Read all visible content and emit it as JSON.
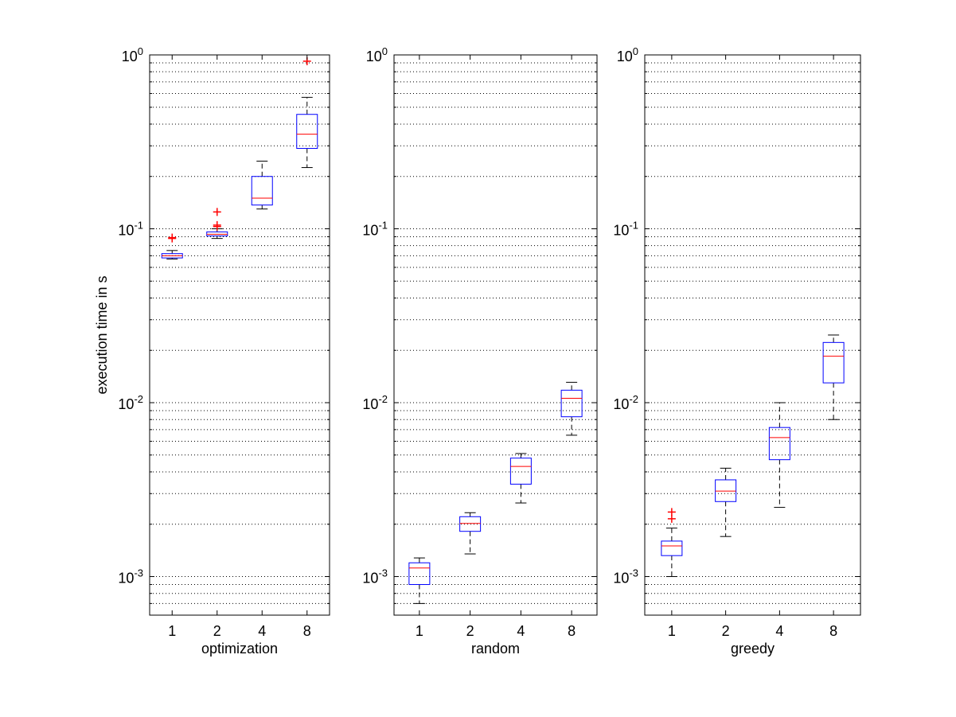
{
  "figure": {
    "ylabel": "execution time in s"
  },
  "chart_data": [
    {
      "type": "box",
      "xlabel": "optimization",
      "ylabel": "execution time in s",
      "yscale": "log",
      "ylim": [
        0.0006,
        1.0
      ],
      "grid": "y-minor-dotted",
      "categories": [
        "1",
        "2",
        "4",
        "8"
      ],
      "yticks": [
        {
          "base": "10",
          "exp": "-3"
        },
        {
          "base": "10",
          "exp": "-2"
        },
        {
          "base": "10",
          "exp": "-1"
        },
        {
          "base": "10",
          "exp": "0"
        }
      ],
      "boxes": [
        {
          "label": "1",
          "whisker_low": 0.067,
          "q1": 0.068,
          "median": 0.07,
          "q3": 0.072,
          "whisker_high": 0.075,
          "outliers": [
            0.088,
            0.089
          ]
        },
        {
          "label": "2",
          "whisker_low": 0.088,
          "q1": 0.091,
          "median": 0.093,
          "q3": 0.096,
          "whisker_high": 0.1,
          "outliers": [
            0.103,
            0.105,
            0.125
          ]
        },
        {
          "label": "4",
          "whisker_low": 0.13,
          "q1": 0.137,
          "median": 0.15,
          "q3": 0.2,
          "whisker_high": 0.245,
          "outliers": []
        },
        {
          "label": "8",
          "whisker_low": 0.225,
          "q1": 0.29,
          "median": 0.35,
          "q3": 0.455,
          "whisker_high": 0.57,
          "outliers": [
            0.92
          ]
        }
      ]
    },
    {
      "type": "box",
      "xlabel": "random",
      "ylabel": "",
      "yscale": "log",
      "ylim": [
        0.0006,
        1.0
      ],
      "grid": "y-minor-dotted",
      "categories": [
        "1",
        "2",
        "4",
        "8"
      ],
      "yticks": [
        {
          "base": "10",
          "exp": "-3"
        },
        {
          "base": "10",
          "exp": "-2"
        },
        {
          "base": "10",
          "exp": "-1"
        },
        {
          "base": "10",
          "exp": "0"
        }
      ],
      "boxes": [
        {
          "label": "1",
          "whisker_low": 0.0007,
          "q1": 0.0009,
          "median": 0.00112,
          "q3": 0.0012,
          "whisker_high": 0.00128,
          "outliers": []
        },
        {
          "label": "2",
          "whisker_low": 0.00135,
          "q1": 0.00182,
          "median": 0.00202,
          "q3": 0.00221,
          "whisker_high": 0.00233,
          "outliers": []
        },
        {
          "label": "4",
          "whisker_low": 0.00265,
          "q1": 0.0034,
          "median": 0.0043,
          "q3": 0.0048,
          "whisker_high": 0.0051,
          "outliers": []
        },
        {
          "label": "8",
          "whisker_low": 0.0065,
          "q1": 0.0083,
          "median": 0.0106,
          "q3": 0.0118,
          "whisker_high": 0.0131,
          "outliers": []
        }
      ]
    },
    {
      "type": "box",
      "xlabel": "greedy",
      "ylabel": "",
      "yscale": "log",
      "ylim": [
        0.0006,
        1.0
      ],
      "grid": "y-minor-dotted",
      "categories": [
        "1",
        "2",
        "4",
        "8"
      ],
      "yticks": [
        {
          "base": "10",
          "exp": "-3"
        },
        {
          "base": "10",
          "exp": "-2"
        },
        {
          "base": "10",
          "exp": "-1"
        },
        {
          "base": "10",
          "exp": "0"
        }
      ],
      "boxes": [
        {
          "label": "1",
          "whisker_low": 0.001,
          "q1": 0.00132,
          "median": 0.0015,
          "q3": 0.0016,
          "whisker_high": 0.0019,
          "outliers": [
            0.00215,
            0.00235
          ]
        },
        {
          "label": "2",
          "whisker_low": 0.0017,
          "q1": 0.0027,
          "median": 0.0031,
          "q3": 0.0036,
          "whisker_high": 0.0042,
          "outliers": []
        },
        {
          "label": "4",
          "whisker_low": 0.0025,
          "q1": 0.0047,
          "median": 0.0063,
          "q3": 0.0072,
          "whisker_high": 0.01,
          "outliers": []
        },
        {
          "label": "8",
          "whisker_low": 0.008,
          "q1": 0.013,
          "median": 0.0185,
          "q3": 0.0222,
          "whisker_high": 0.0245,
          "outliers": []
        }
      ]
    }
  ]
}
